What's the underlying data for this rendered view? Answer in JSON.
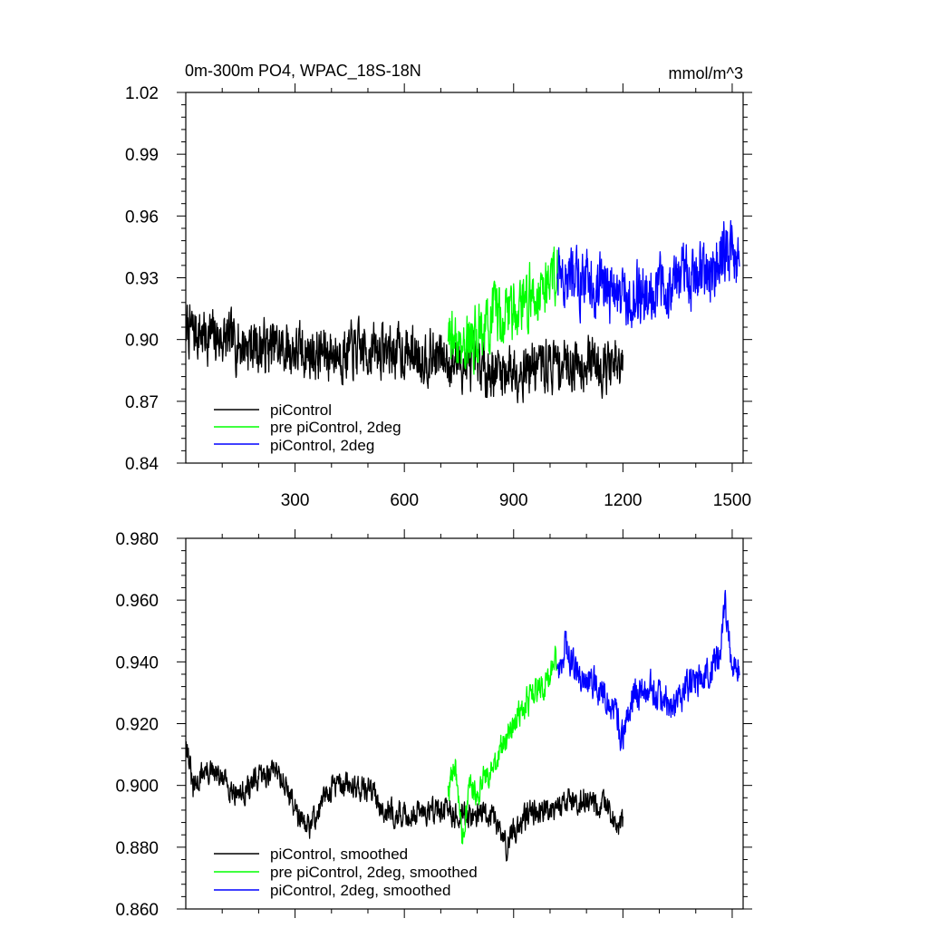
{
  "chart_data": [
    {
      "type": "line",
      "title": "0m-300m PO4, WPAC_18S-18N",
      "units": "mmol/m^3",
      "xlim": [
        0,
        1530
      ],
      "ylim": [
        0.84,
        1.02
      ],
      "xticks": [
        300,
        600,
        900,
        1200,
        1500
      ],
      "xtick_labels": [
        "300",
        "600",
        "900",
        "1200",
        "1500"
      ],
      "yticks": [
        0.84,
        0.87,
        0.9,
        0.93,
        0.96,
        0.99,
        1.02
      ],
      "ytick_labels": [
        "0.84",
        "0.87",
        "0.90",
        "0.93",
        "0.96",
        "0.99",
        "1.02"
      ],
      "legend_placement": "bottom-left",
      "series": [
        {
          "name": "piControl",
          "color": "#000000",
          "x_start": 1,
          "x_end": 1200,
          "noise": 0.011,
          "points": [
            [
              1,
              0.905
            ],
            [
              60,
              0.902
            ],
            [
              150,
              0.898
            ],
            [
              250,
              0.896
            ],
            [
              350,
              0.893
            ],
            [
              450,
              0.894
            ],
            [
              550,
              0.895
            ],
            [
              650,
              0.893
            ],
            [
              720,
              0.89
            ],
            [
              800,
              0.887
            ],
            [
              850,
              0.885
            ],
            [
              900,
              0.886
            ],
            [
              950,
              0.887
            ],
            [
              1000,
              0.888
            ],
            [
              1050,
              0.889
            ],
            [
              1100,
              0.89
            ],
            [
              1150,
              0.888
            ],
            [
              1200,
              0.884
            ]
          ]
        },
        {
          "name": "pre piControl, 2deg",
          "color": "#00ff00",
          "x_start": 720,
          "x_end": 1020,
          "noise": 0.013,
          "points": [
            [
              720,
              0.9
            ],
            [
              780,
              0.9
            ],
            [
              850,
              0.91
            ],
            [
              920,
              0.918
            ],
            [
              980,
              0.925
            ],
            [
              1020,
              0.935
            ]
          ]
        },
        {
          "name": "piControl, 2deg",
          "color": "#0000ff",
          "x_start": 1020,
          "x_end": 1520,
          "noise": 0.013,
          "points": [
            [
              1020,
              0.933
            ],
            [
              1100,
              0.928
            ],
            [
              1150,
              0.926
            ],
            [
              1200,
              0.92
            ],
            [
              1250,
              0.922
            ],
            [
              1300,
              0.925
            ],
            [
              1350,
              0.928
            ],
            [
              1400,
              0.932
            ],
            [
              1450,
              0.934
            ],
            [
              1470,
              0.944
            ],
            [
              1520,
              0.937
            ]
          ]
        }
      ]
    },
    {
      "type": "line",
      "title": "",
      "xlim": [
        0,
        1530
      ],
      "ylim": [
        0.86,
        0.98
      ],
      "xticks": [
        300,
        600,
        900,
        1200,
        1500
      ],
      "yticks": [
        0.86,
        0.88,
        0.9,
        0.92,
        0.94,
        0.96,
        0.98
      ],
      "ytick_labels": [
        "0.860",
        "0.880",
        "0.900",
        "0.920",
        "0.940",
        "0.960",
        "0.980"
      ],
      "legend_placement": "bottom-left",
      "series": [
        {
          "name": "piControl, smoothed",
          "color": "#000000",
          "x_start": 1,
          "x_end": 1200,
          "noise": 0.0035,
          "points": [
            [
              1,
              0.916
            ],
            [
              20,
              0.898
            ],
            [
              50,
              0.905
            ],
            [
              100,
              0.902
            ],
            [
              150,
              0.897
            ],
            [
              200,
              0.902
            ],
            [
              250,
              0.906
            ],
            [
              300,
              0.893
            ],
            [
              330,
              0.885
            ],
            [
              370,
              0.893
            ],
            [
              400,
              0.9
            ],
            [
              450,
              0.9
            ],
            [
              500,
              0.899
            ],
            [
              550,
              0.892
            ],
            [
              600,
              0.89
            ],
            [
              650,
              0.892
            ],
            [
              700,
              0.892
            ],
            [
              750,
              0.89
            ],
            [
              800,
              0.891
            ],
            [
              850,
              0.889
            ],
            [
              880,
              0.88
            ],
            [
              900,
              0.885
            ],
            [
              950,
              0.892
            ],
            [
              1000,
              0.893
            ],
            [
              1050,
              0.895
            ],
            [
              1100,
              0.896
            ],
            [
              1150,
              0.893
            ],
            [
              1190,
              0.886
            ],
            [
              1200,
              0.887
            ]
          ]
        },
        {
          "name": "pre piControl, 2deg, smoothed",
          "color": "#00ff00",
          "x_start": 720,
          "x_end": 1020,
          "noise": 0.004,
          "points": [
            [
              720,
              0.898
            ],
            [
              740,
              0.905
            ],
            [
              760,
              0.882
            ],
            [
              780,
              0.9
            ],
            [
              800,
              0.898
            ],
            [
              840,
              0.905
            ],
            [
              880,
              0.915
            ],
            [
              920,
              0.925
            ],
            [
              960,
              0.93
            ],
            [
              1000,
              0.935
            ],
            [
              1015,
              0.945
            ],
            [
              1020,
              0.935
            ]
          ]
        },
        {
          "name": "piControl, 2deg, smoothed",
          "color": "#0000ff",
          "x_start": 1020,
          "x_end": 1520,
          "noise": 0.0045,
          "points": [
            [
              1020,
              0.935
            ],
            [
              1040,
              0.945
            ],
            [
              1080,
              0.935
            ],
            [
              1120,
              0.933
            ],
            [
              1160,
              0.928
            ],
            [
              1200,
              0.915
            ],
            [
              1230,
              0.93
            ],
            [
              1280,
              0.932
            ],
            [
              1330,
              0.925
            ],
            [
              1380,
              0.932
            ],
            [
              1430,
              0.935
            ],
            [
              1470,
              0.945
            ],
            [
              1480,
              0.958
            ],
            [
              1500,
              0.94
            ],
            [
              1520,
              0.938
            ]
          ]
        }
      ]
    }
  ]
}
